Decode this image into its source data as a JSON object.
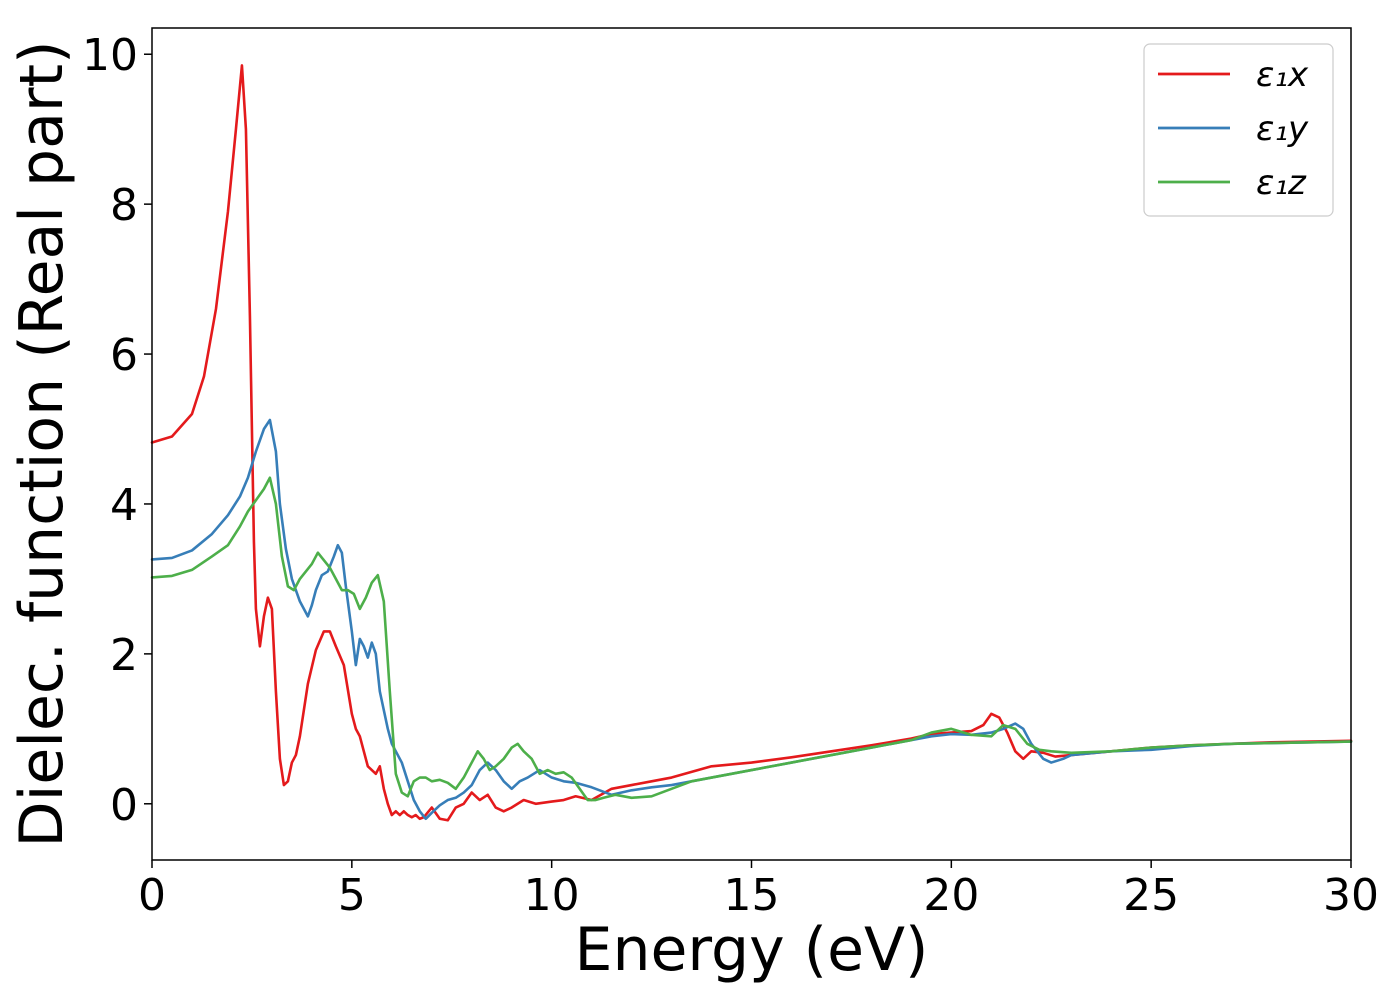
{
  "chart_data": {
    "type": "line",
    "xlabel": "Energy (eV)",
    "ylabel": "Dielec. function (Real part)",
    "xlim": [
      0,
      30
    ],
    "ylim": [
      -0.75,
      10.35
    ],
    "xticks": [
      0,
      5,
      10,
      15,
      20,
      25,
      30
    ],
    "yticks": [
      0,
      2,
      4,
      6,
      8,
      10
    ],
    "grid": false,
    "legend_position": "top-right",
    "series": [
      {
        "name": "ε₁x",
        "color": "#e41a1c",
        "x": [
          0,
          0.5,
          1.0,
          1.3,
          1.6,
          1.9,
          2.1,
          2.25,
          2.35,
          2.45,
          2.55,
          2.6,
          2.7,
          2.8,
          2.9,
          3.0,
          3.1,
          3.2,
          3.3,
          3.4,
          3.5,
          3.6,
          3.7,
          3.9,
          4.1,
          4.3,
          4.45,
          4.6,
          4.8,
          5.0,
          5.1,
          5.2,
          5.3,
          5.4,
          5.5,
          5.6,
          5.7,
          5.8,
          5.9,
          6.0,
          6.1,
          6.2,
          6.3,
          6.4,
          6.5,
          6.6,
          6.7,
          6.8,
          7.0,
          7.2,
          7.4,
          7.6,
          7.8,
          8.0,
          8.2,
          8.4,
          8.6,
          8.8,
          9.0,
          9.3,
          9.6,
          10.0,
          10.3,
          10.6,
          11.0,
          11.5,
          12.0,
          12.5,
          13.0,
          14.0,
          15.0,
          16.0,
          17.0,
          18.0,
          19.0,
          19.5,
          20.0,
          20.5,
          20.8,
          21.0,
          21.2,
          21.4,
          21.6,
          21.8,
          22.0,
          22.3,
          22.6,
          23.0,
          24.0,
          25.0,
          26.0,
          27.0,
          28.0,
          29.0,
          30.0
        ],
        "values": [
          4.82,
          4.9,
          5.2,
          5.7,
          6.6,
          7.9,
          9.0,
          9.85,
          9.0,
          6.5,
          3.5,
          2.6,
          2.1,
          2.5,
          2.75,
          2.6,
          1.5,
          0.6,
          0.25,
          0.3,
          0.55,
          0.65,
          0.9,
          1.6,
          2.05,
          2.3,
          2.3,
          2.1,
          1.85,
          1.2,
          1.0,
          0.9,
          0.7,
          0.5,
          0.45,
          0.4,
          0.5,
          0.2,
          0.0,
          -0.15,
          -0.1,
          -0.15,
          -0.1,
          -0.15,
          -0.18,
          -0.15,
          -0.2,
          -0.18,
          -0.05,
          -0.2,
          -0.22,
          -0.05,
          0.0,
          0.15,
          0.05,
          0.12,
          -0.05,
          -0.1,
          -0.05,
          0.05,
          0.0,
          0.03,
          0.05,
          0.1,
          0.05,
          0.2,
          0.25,
          0.3,
          0.35,
          0.5,
          0.55,
          0.62,
          0.7,
          0.78,
          0.87,
          0.93,
          0.95,
          0.97,
          1.05,
          1.2,
          1.15,
          0.95,
          0.7,
          0.6,
          0.7,
          0.68,
          0.63,
          0.65,
          0.7,
          0.75,
          0.78,
          0.8,
          0.82,
          0.83,
          0.84
        ]
      },
      {
        "name": "ε₁y",
        "color": "#377eb8",
        "x": [
          0,
          0.5,
          1.0,
          1.5,
          1.9,
          2.2,
          2.4,
          2.6,
          2.8,
          2.95,
          3.1,
          3.2,
          3.35,
          3.5,
          3.7,
          3.9,
          4.0,
          4.1,
          4.25,
          4.4,
          4.55,
          4.65,
          4.75,
          4.85,
          5.0,
          5.1,
          5.2,
          5.3,
          5.4,
          5.5,
          5.6,
          5.7,
          5.8,
          5.9,
          6.0,
          6.1,
          6.25,
          6.4,
          6.55,
          6.7,
          6.85,
          7.0,
          7.2,
          7.4,
          7.6,
          7.8,
          8.0,
          8.2,
          8.4,
          8.6,
          8.8,
          9.0,
          9.2,
          9.4,
          9.7,
          10.0,
          10.3,
          10.6,
          11.0,
          11.5,
          12.0,
          12.5,
          13.0,
          14.0,
          15.0,
          16.0,
          17.0,
          18.0,
          19.0,
          19.5,
          20.0,
          20.5,
          21.0,
          21.3,
          21.6,
          21.8,
          22.0,
          22.3,
          22.5,
          22.8,
          23.0,
          24.0,
          25.0,
          26.0,
          27.0,
          28.0,
          29.0,
          30.0
        ],
        "values": [
          3.26,
          3.28,
          3.38,
          3.6,
          3.85,
          4.1,
          4.35,
          4.7,
          5.0,
          5.12,
          4.7,
          4.0,
          3.4,
          3.0,
          2.7,
          2.5,
          2.65,
          2.85,
          3.05,
          3.1,
          3.3,
          3.45,
          3.35,
          2.9,
          2.3,
          1.85,
          2.2,
          2.1,
          1.95,
          2.15,
          2.0,
          1.5,
          1.25,
          1.0,
          0.8,
          0.7,
          0.55,
          0.3,
          0.05,
          -0.1,
          -0.2,
          -0.12,
          -0.02,
          0.05,
          0.08,
          0.15,
          0.25,
          0.45,
          0.55,
          0.45,
          0.3,
          0.2,
          0.3,
          0.35,
          0.45,
          0.35,
          0.3,
          0.28,
          0.22,
          0.12,
          0.18,
          0.22,
          0.25,
          0.35,
          0.45,
          0.55,
          0.65,
          0.75,
          0.85,
          0.9,
          0.93,
          0.92,
          0.95,
          1.0,
          1.07,
          1.0,
          0.8,
          0.6,
          0.55,
          0.6,
          0.65,
          0.7,
          0.72,
          0.77,
          0.8,
          0.81,
          0.82,
          0.83
        ]
      },
      {
        "name": "ε₁z",
        "color": "#4daf4a",
        "x": [
          0,
          0.5,
          1.0,
          1.5,
          1.9,
          2.2,
          2.4,
          2.6,
          2.8,
          2.95,
          3.1,
          3.25,
          3.4,
          3.55,
          3.7,
          3.85,
          4.0,
          4.15,
          4.3,
          4.45,
          4.6,
          4.75,
          4.9,
          5.05,
          5.2,
          5.35,
          5.5,
          5.65,
          5.8,
          5.95,
          6.1,
          6.25,
          6.4,
          6.55,
          6.7,
          6.85,
          7.0,
          7.2,
          7.4,
          7.6,
          7.8,
          8.0,
          8.15,
          8.3,
          8.45,
          8.6,
          8.8,
          9.0,
          9.15,
          9.3,
          9.5,
          9.7,
          9.9,
          10.1,
          10.3,
          10.5,
          10.7,
          10.9,
          11.1,
          11.3,
          11.6,
          12.0,
          12.5,
          13.0,
          13.5,
          14.0,
          15.0,
          16.0,
          17.0,
          18.0,
          19.0,
          19.5,
          20.0,
          20.5,
          21.0,
          21.3,
          21.6,
          21.9,
          22.2,
          22.5,
          23.0,
          24.0,
          25.0,
          26.0,
          27.0,
          28.0,
          29.0,
          30.0
        ],
        "values": [
          3.02,
          3.04,
          3.12,
          3.3,
          3.45,
          3.7,
          3.9,
          4.05,
          4.2,
          4.35,
          4.0,
          3.3,
          2.9,
          2.85,
          3.0,
          3.1,
          3.2,
          3.35,
          3.25,
          3.15,
          3.0,
          2.85,
          2.85,
          2.8,
          2.6,
          2.75,
          2.95,
          3.05,
          2.7,
          1.5,
          0.4,
          0.15,
          0.1,
          0.3,
          0.35,
          0.35,
          0.3,
          0.32,
          0.28,
          0.2,
          0.35,
          0.55,
          0.7,
          0.6,
          0.45,
          0.5,
          0.6,
          0.75,
          0.8,
          0.7,
          0.6,
          0.4,
          0.45,
          0.4,
          0.42,
          0.35,
          0.2,
          0.05,
          0.05,
          0.08,
          0.12,
          0.08,
          0.1,
          0.2,
          0.3,
          0.35,
          0.45,
          0.55,
          0.65,
          0.75,
          0.85,
          0.95,
          1.0,
          0.92,
          0.9,
          1.05,
          1.0,
          0.8,
          0.72,
          0.7,
          0.68,
          0.7,
          0.75,
          0.78,
          0.8,
          0.81,
          0.82,
          0.83
        ]
      }
    ]
  }
}
